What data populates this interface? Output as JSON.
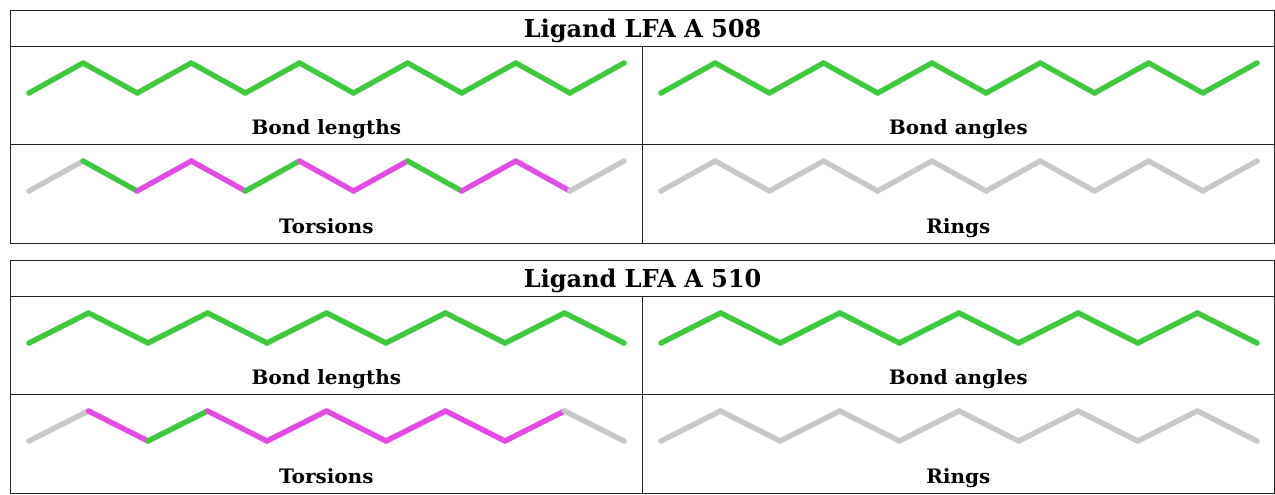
{
  "colors": {
    "green": "#3fc93f",
    "magenta": "#e24ce2",
    "gray": "#c8c8c8"
  },
  "ligands": [
    {
      "title": "Ligand LFA A 508",
      "panels": [
        {
          "label": "Bond lengths",
          "bonds": [
            "green",
            "green",
            "green",
            "green",
            "green",
            "green",
            "green",
            "green",
            "green",
            "green",
            "green"
          ]
        },
        {
          "label": "Bond angles",
          "bonds": [
            "green",
            "green",
            "green",
            "green",
            "green",
            "green",
            "green",
            "green",
            "green",
            "green",
            "green"
          ]
        },
        {
          "label": "Torsions",
          "bonds": [
            "gray",
            "green",
            "magenta",
            "magenta",
            "green",
            "magenta",
            "magenta",
            "green",
            "magenta",
            "magenta",
            "gray"
          ]
        },
        {
          "label": "Rings",
          "bonds": [
            "gray",
            "gray",
            "gray",
            "gray",
            "gray",
            "gray",
            "gray",
            "gray",
            "gray",
            "gray",
            "gray"
          ]
        }
      ]
    },
    {
      "title": "Ligand LFA A 510",
      "panels": [
        {
          "label": "Bond lengths",
          "bonds": [
            "green",
            "green",
            "green",
            "green",
            "green",
            "green",
            "green",
            "green",
            "green",
            "green"
          ]
        },
        {
          "label": "Bond angles",
          "bonds": [
            "green",
            "green",
            "green",
            "green",
            "green",
            "green",
            "green",
            "green",
            "green",
            "green"
          ]
        },
        {
          "label": "Torsions",
          "bonds": [
            "gray",
            "magenta",
            "green",
            "magenta",
            "magenta",
            "magenta",
            "magenta",
            "magenta",
            "magenta",
            "gray"
          ]
        },
        {
          "label": "Rings",
          "bonds": [
            "gray",
            "gray",
            "gray",
            "gray",
            "gray",
            "gray",
            "gray",
            "gray",
            "gray",
            "gray"
          ]
        }
      ]
    }
  ]
}
